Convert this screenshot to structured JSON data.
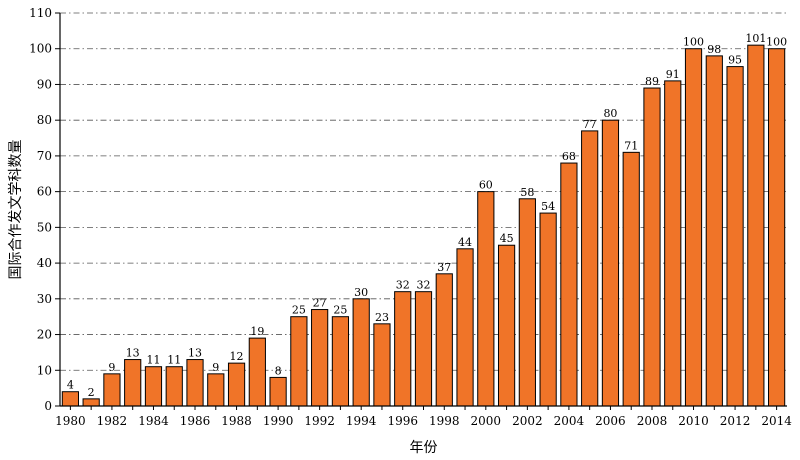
{
  "chart_data": {
    "type": "bar",
    "title": "",
    "xlabel": "年份",
    "ylabel": "国际合作发文学科数量",
    "categories": [
      "1980",
      "1981",
      "1982",
      "1983",
      "1984",
      "1985",
      "1986",
      "1987",
      "1988",
      "1989",
      "1990",
      "1991",
      "1992",
      "1993",
      "1994",
      "1995",
      "1996",
      "1997",
      "1998",
      "1999",
      "2000",
      "2001",
      "2002",
      "2003",
      "2004",
      "2005",
      "2006",
      "2007",
      "2008",
      "2009",
      "2010",
      "2011",
      "2012",
      "2013",
      "2014"
    ],
    "values": [
      4,
      2,
      9,
      13,
      11,
      11,
      13,
      9,
      12,
      19,
      8,
      25,
      27,
      25,
      30,
      23,
      32,
      32,
      37,
      44,
      60,
      45,
      58,
      54,
      68,
      77,
      80,
      71,
      89,
      91,
      100,
      98,
      95,
      101,
      100
    ],
    "x_tick_labels": [
      "1980",
      "1982",
      "1984",
      "1986",
      "1988",
      "1990",
      "1992",
      "1994",
      "1996",
      "1998",
      "2000",
      "2002",
      "2004",
      "2006",
      "2008",
      "2010",
      "2012",
      "2014"
    ],
    "y_ticks": [
      "0",
      "10",
      "20",
      "30",
      "40",
      "50",
      "60",
      "70",
      "80",
      "90",
      "100",
      "110"
    ],
    "ylim": [
      0,
      110
    ],
    "grid": "horizontal dash-dot",
    "bar_color": "#f07428",
    "bar_edge_color": "#000000"
  }
}
